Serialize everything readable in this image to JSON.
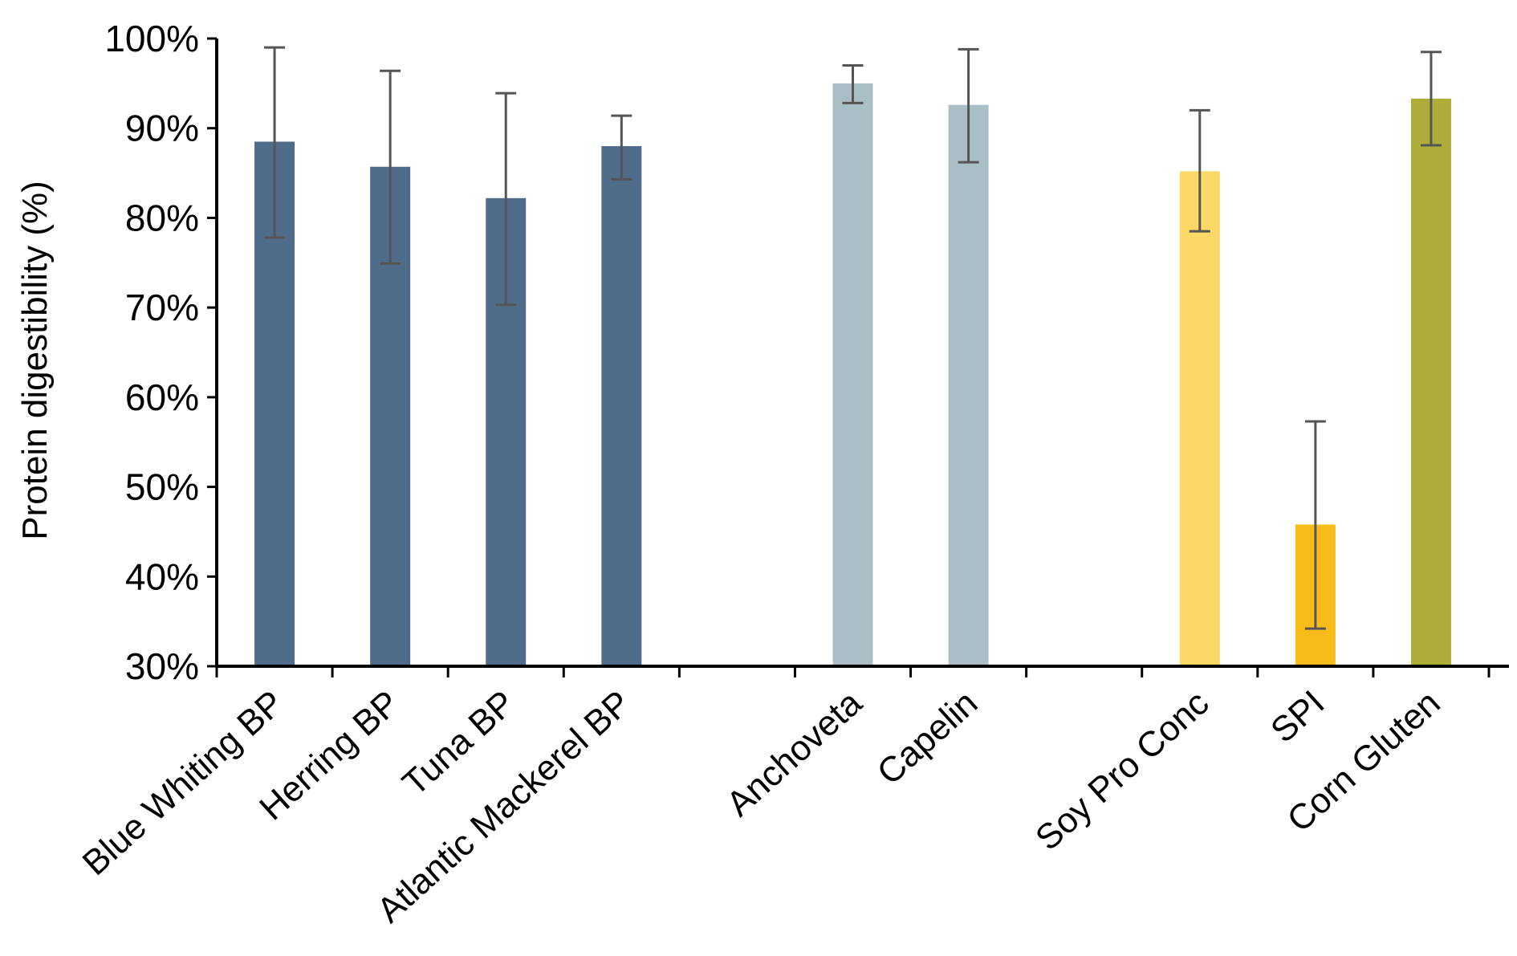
{
  "chart_data": {
    "type": "bar",
    "ylabel": "Protein digestibility (%)",
    "xlabel": "",
    "ylim": [
      30,
      100
    ],
    "yticks": [
      30,
      40,
      50,
      60,
      70,
      80,
      90,
      100
    ],
    "ytick_labels": [
      "30%",
      "40%",
      "50%",
      "60%",
      "70%",
      "80%",
      "90%",
      "100%"
    ],
    "grid": false,
    "legend": "none",
    "slots": 11,
    "bars": [
      {
        "category": "Blue Whiting BP",
        "slot": 0,
        "value": 88.5,
        "err_low": 77.8,
        "err_high": 99.0,
        "color": "#4F6D8A"
      },
      {
        "category": "Herring BP",
        "slot": 1,
        "value": 85.7,
        "err_low": 74.9,
        "err_high": 96.4,
        "color": "#4F6D8A"
      },
      {
        "category": "Tuna BP",
        "slot": 2,
        "value": 82.2,
        "err_low": 70.3,
        "err_high": 93.9,
        "color": "#4F6D8A"
      },
      {
        "category": "Atlantic Mackerel BP",
        "slot": 3,
        "value": 88.0,
        "err_low": 84.3,
        "err_high": 91.4,
        "color": "#4F6D8A"
      },
      {
        "category": "Anchoveta",
        "slot": 5,
        "value": 95.0,
        "err_low": 92.8,
        "err_high": 97.0,
        "color": "#A9BFC5"
      },
      {
        "category": "Capelin",
        "slot": 6,
        "value": 92.6,
        "err_low": 86.2,
        "err_high": 98.8,
        "color": "#A9BFC5"
      },
      {
        "category": "Soy Pro Conc",
        "slot": 8,
        "value": 85.2,
        "err_low": 78.5,
        "err_high": 92.0,
        "color": "#FCD866"
      },
      {
        "category": "SPI",
        "slot": 9,
        "value": 45.8,
        "err_low": 34.2,
        "err_high": 57.3,
        "color": "#F7BC1A"
      },
      {
        "category": "Corn Gluten",
        "slot": 10,
        "value": 93.3,
        "err_low": 88.1,
        "err_high": 98.5,
        "color": "#AFAD3A"
      }
    ]
  }
}
